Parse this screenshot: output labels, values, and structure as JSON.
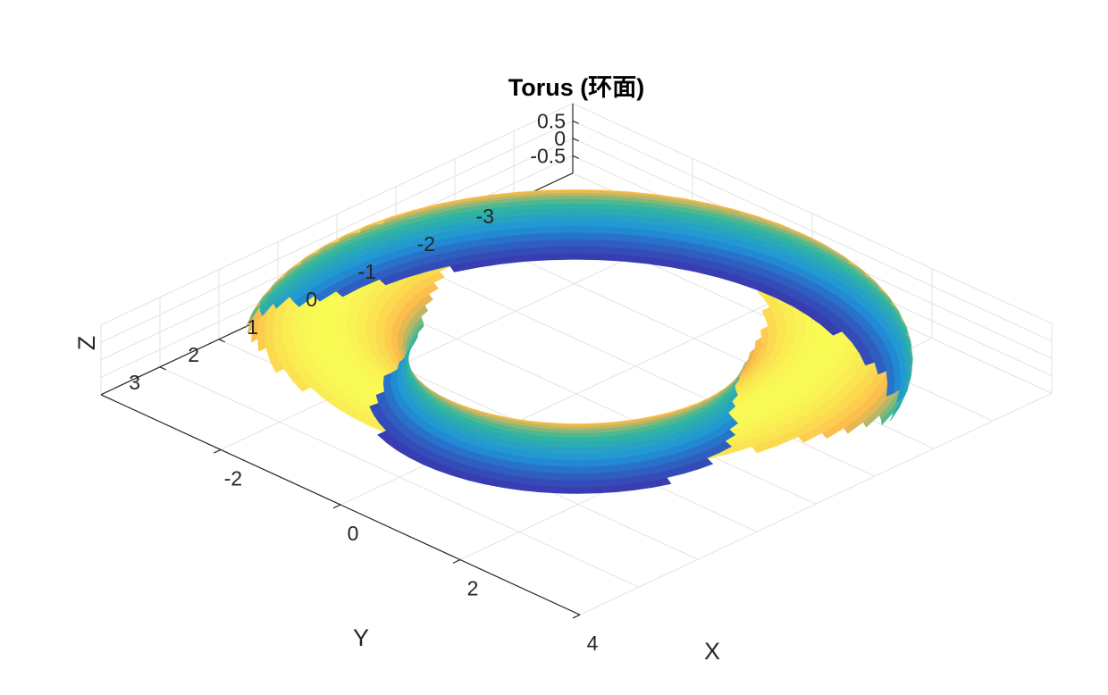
{
  "chart_data": {
    "type": "surface",
    "title": "Torus (环面)",
    "xlabel": "X",
    "ylabel": "Y",
    "zlabel": "Z",
    "surface": "torus",
    "major_radius": 3,
    "minor_radius": 1,
    "xlim": [
      -4,
      4
    ],
    "ylim": [
      -4,
      4
    ],
    "zlim": [
      -1,
      1
    ],
    "x_ticks": [
      -2,
      0,
      2,
      4
    ],
    "y_ticks": [
      -3,
      -2,
      -1,
      0,
      1,
      2,
      3
    ],
    "z_ticks": [
      -0.5,
      0,
      0.5
    ],
    "x_tick_labels": [
      "-2",
      "0",
      "2",
      "4"
    ],
    "y_tick_labels": [
      "-3",
      "-2",
      "-1",
      "0",
      "1",
      "2",
      "3"
    ],
    "z_tick_labels": [
      "-0.5",
      "0",
      "0.5"
    ],
    "grid": true,
    "box": false,
    "colormap": "parula",
    "color_data": "z",
    "colors": {
      "low": "#3e26a8",
      "mid_low": "#1f96d8",
      "mid": "#35b89a",
      "mid_high": "#fdb84a",
      "high": "#f9fb55"
    },
    "shading": "interp"
  }
}
